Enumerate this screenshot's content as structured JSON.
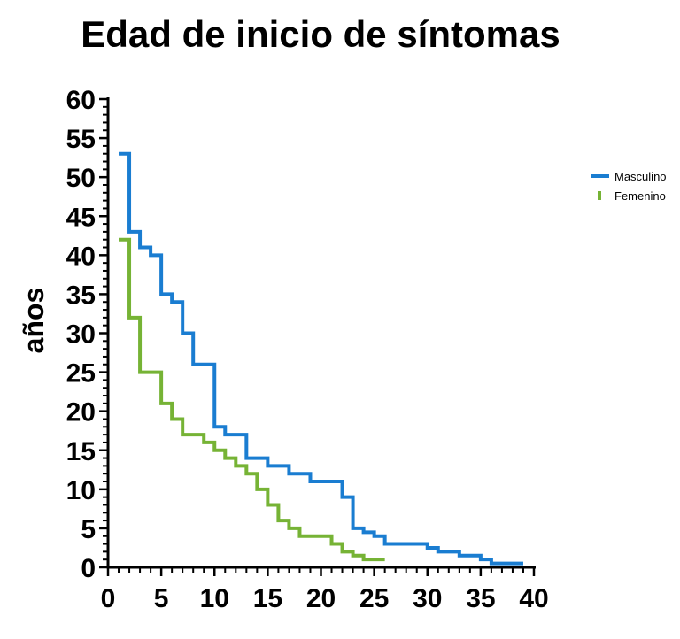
{
  "chart_data": {
    "type": "line",
    "step": true,
    "title": "Edad de inicio de síntomas",
    "xlabel": "",
    "ylabel": "años",
    "xlim": [
      0,
      40
    ],
    "ylim": [
      0,
      60
    ],
    "x_ticks": [
      0,
      5,
      10,
      15,
      20,
      25,
      30,
      35,
      40
    ],
    "y_ticks": [
      0,
      5,
      10,
      15,
      20,
      25,
      30,
      35,
      40,
      45,
      50,
      55,
      60
    ],
    "grid": false,
    "legend_position": "right",
    "series": [
      {
        "name": "Masculino",
        "color": "#1a7dd1",
        "x": [
          1,
          2,
          3,
          4,
          5,
          6,
          7,
          8,
          10,
          11,
          13,
          15,
          17,
          19,
          22,
          23,
          24,
          25,
          26,
          30,
          31,
          33,
          35,
          36,
          39
        ],
        "y": [
          53,
          43,
          41,
          40,
          35,
          34,
          30,
          26,
          18,
          17,
          14,
          13,
          12,
          11,
          9,
          5,
          4.5,
          4,
          3,
          2.5,
          2,
          1.5,
          1,
          0.5,
          0.5
        ]
      },
      {
        "name": "Femenino",
        "color": "#76b335",
        "x": [
          1,
          2,
          3,
          5,
          6,
          7,
          9,
          10,
          11,
          12,
          13,
          14,
          15,
          16,
          17,
          18,
          21,
          22,
          23,
          24,
          25,
          26
        ],
        "y": [
          42,
          32,
          25,
          21,
          19,
          17,
          16,
          15,
          14,
          13,
          12,
          10,
          8,
          6,
          5,
          4,
          3,
          2,
          1.5,
          1,
          1,
          1
        ]
      }
    ]
  }
}
